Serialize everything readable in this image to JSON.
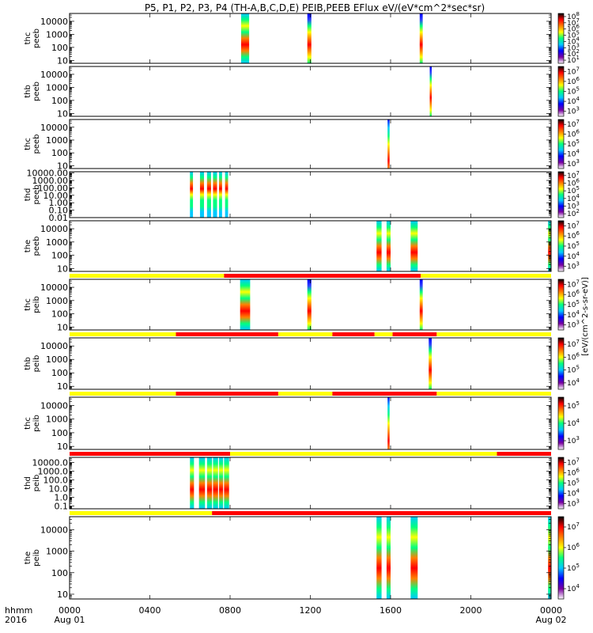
{
  "chart_data": {
    "type": "heatmap",
    "title": "P5, P1, P2, P3, P4 (TH-A,B,C,D,E) PEIB,PEEB EFlux eV/(eV*cm^2*sec*sr)",
    "colorbar_label": "[eV/(cm^2-s-sr-eV)]",
    "x_axis": {
      "row_label": "hhmm",
      "year_label": "2016",
      "ticks": [
        "0000",
        "0400",
        "0800",
        "1200",
        "1600",
        "2000",
        "0000"
      ],
      "date_labels": [
        "Aug 01",
        "",
        "",
        "",
        "",
        "",
        "Aug 02"
      ],
      "xlim": [
        "2016-08-01 00:00",
        "2016-08-02 00:00"
      ]
    },
    "colormap": [
      "#ffffff",
      "#7a00a0",
      "#0000ff",
      "#00c8ff",
      "#00ff80",
      "#ffff00",
      "#ff8000",
      "#ff0000",
      "#000000"
    ],
    "status_bar_colors": {
      "yellow": "#ffff00",
      "red": "#ff0000"
    },
    "panels": [
      {
        "label": [
          "thc",
          "peeb"
        ],
        "y_scale": "log",
        "ylim": [
          6,
          40000
        ],
        "yticks": [
          "10",
          "100",
          "1000",
          "10000"
        ],
        "colorbar_ticks": [
          "10^1",
          "10^2",
          "10^3",
          "10^4",
          "10^5",
          "10^6",
          "10^7",
          "10^8"
        ],
        "blocks": [
          {
            "t0": 8.55,
            "t1": 8.95,
            "style": "mixed"
          },
          {
            "t0": 11.85,
            "t1": 12.05,
            "style": "band"
          },
          {
            "t0": 17.45,
            "t1": 17.6,
            "style": "band"
          }
        ]
      },
      {
        "label": [
          "thb",
          "peeb"
        ],
        "y_scale": "log",
        "ylim": [
          6,
          40000
        ],
        "yticks": [
          "10",
          "100",
          "1000",
          "10000"
        ],
        "colorbar_ticks": [
          "10^3",
          "10^4",
          "10^5",
          "10^6",
          "10^7"
        ],
        "blocks": [
          {
            "t0": 17.95,
            "t1": 18.05,
            "style": "band"
          }
        ]
      },
      {
        "label": [
          "thc",
          "peeb"
        ],
        "y_scale": "log",
        "ylim": [
          6,
          40000
        ],
        "yticks": [
          "10",
          "100",
          "1000",
          "10000"
        ],
        "colorbar_ticks": [
          "10^3",
          "10^4",
          "10^5",
          "10^6",
          "10^7"
        ],
        "blocks": [
          {
            "t0": 15.85,
            "t1": 15.95,
            "style": "thin"
          }
        ]
      },
      {
        "label": [
          "thd",
          "peeb"
        ],
        "y_scale": "log",
        "ylim": [
          0.01,
          15000
        ],
        "yticks": [
          "0.01",
          "0.10",
          "1.00",
          "10.00",
          "100.00",
          "1000.00",
          "10000.00"
        ],
        "colorbar_ticks": [
          "10^2",
          "10^3",
          "10^4",
          "10^5",
          "10^6",
          "10^7"
        ],
        "blocks": [
          {
            "t0": 6.0,
            "t1": 6.15,
            "style": "stripe"
          },
          {
            "t0": 6.5,
            "t1": 6.7,
            "style": "stripe"
          },
          {
            "t0": 6.85,
            "t1": 7.05,
            "style": "stripe"
          },
          {
            "t0": 7.15,
            "t1": 7.35,
            "style": "stripe"
          },
          {
            "t0": 7.45,
            "t1": 7.6,
            "style": "stripe"
          },
          {
            "t0": 7.75,
            "t1": 7.9,
            "style": "stripe"
          }
        ]
      },
      {
        "label": [
          "the",
          "peeb"
        ],
        "y_scale": "log",
        "ylim": [
          6,
          40000
        ],
        "yticks": [
          "10",
          "100",
          "1000",
          "10000"
        ],
        "colorbar_ticks": [
          "10^3",
          "10^4",
          "10^5",
          "10^6",
          "10^7"
        ],
        "blocks": [
          {
            "t0": 15.3,
            "t1": 15.55,
            "style": "mixed"
          },
          {
            "t0": 15.8,
            "t1": 16.0,
            "style": "mixed"
          },
          {
            "t0": 17.0,
            "t1": 17.35,
            "style": "mixed"
          },
          {
            "t0": 23.85,
            "t1": 24.0,
            "style": "mixed"
          }
        ],
        "status_bar": [
          {
            "t0": 0,
            "t1": 7.7,
            "color": "yellow"
          },
          {
            "t0": 7.7,
            "t1": 17.5,
            "color": "red"
          },
          {
            "t0": 17.5,
            "t1": 24,
            "color": "yellow"
          }
        ]
      },
      {
        "label": [
          "thc",
          "peib"
        ],
        "y_scale": "log",
        "ylim": [
          6,
          40000
        ],
        "yticks": [
          "10",
          "100",
          "1000",
          "10000"
        ],
        "colorbar_ticks": [
          "10^3",
          "10^4",
          "10^5",
          "10^6",
          "10^7"
        ],
        "blocks": [
          {
            "t0": 8.5,
            "t1": 9.0,
            "style": "mixed"
          },
          {
            "t0": 11.85,
            "t1": 12.05,
            "style": "band"
          },
          {
            "t0": 17.45,
            "t1": 17.6,
            "style": "band"
          }
        ],
        "status_bar": [
          {
            "t0": 0,
            "t1": 5.3,
            "color": "yellow"
          },
          {
            "t0": 5.3,
            "t1": 10.4,
            "color": "red"
          },
          {
            "t0": 10.4,
            "t1": 13.1,
            "color": "yellow"
          },
          {
            "t0": 13.1,
            "t1": 15.2,
            "color": "red"
          },
          {
            "t0": 15.2,
            "t1": 16.1,
            "color": "yellow"
          },
          {
            "t0": 16.1,
            "t1": 18.3,
            "color": "red"
          },
          {
            "t0": 18.3,
            "t1": 24,
            "color": "yellow"
          }
        ]
      },
      {
        "label": [
          "thb",
          "peib"
        ],
        "y_scale": "log",
        "ylim": [
          6,
          40000
        ],
        "yticks": [
          "10",
          "100",
          "1000",
          "10000"
        ],
        "colorbar_ticks": [
          "10^4",
          "10^5",
          "10^6",
          "10^7"
        ],
        "blocks": [
          {
            "t0": 17.9,
            "t1": 18.05,
            "style": "band"
          }
        ],
        "status_bar": [
          {
            "t0": 0,
            "t1": 5.3,
            "color": "yellow"
          },
          {
            "t0": 5.3,
            "t1": 10.4,
            "color": "red"
          },
          {
            "t0": 10.4,
            "t1": 13.1,
            "color": "yellow"
          },
          {
            "t0": 13.1,
            "t1": 18.3,
            "color": "red"
          },
          {
            "t0": 18.3,
            "t1": 24,
            "color": "yellow"
          }
        ]
      },
      {
        "label": [
          "thc",
          "peib"
        ],
        "y_scale": "log",
        "ylim": [
          6,
          40000
        ],
        "yticks": [
          "10",
          "100",
          "1000",
          "10000"
        ],
        "colorbar_ticks": [
          "10^3",
          "10^4",
          "10^5"
        ],
        "blocks": [
          {
            "t0": 15.85,
            "t1": 15.95,
            "style": "thin"
          }
        ],
        "status_bar": [
          {
            "t0": 0,
            "t1": 8.0,
            "color": "red"
          },
          {
            "t0": 8.0,
            "t1": 21.3,
            "color": "yellow"
          },
          {
            "t0": 21.3,
            "t1": 24,
            "color": "red"
          }
        ]
      },
      {
        "label": [
          "thd",
          "peib"
        ],
        "y_scale": "log",
        "ylim": [
          0.05,
          40000
        ],
        "yticks": [
          "0.1",
          "1.0",
          "10.0",
          "100.0",
          "1000.0",
          "10000.0"
        ],
        "colorbar_ticks": [
          "10^3",
          "10^4",
          "10^5",
          "10^6",
          "10^7"
        ],
        "blocks": [
          {
            "t0": 6.0,
            "t1": 6.2,
            "style": "mixed"
          },
          {
            "t0": 6.45,
            "t1": 6.75,
            "style": "mixed"
          },
          {
            "t0": 6.85,
            "t1": 7.1,
            "style": "mixed"
          },
          {
            "t0": 7.15,
            "t1": 7.4,
            "style": "mixed"
          },
          {
            "t0": 7.45,
            "t1": 7.65,
            "style": "mixed"
          },
          {
            "t0": 7.7,
            "t1": 7.95,
            "style": "mixed"
          }
        ],
        "status_bar": [
          {
            "t0": 0,
            "t1": 7.1,
            "color": "yellow"
          },
          {
            "t0": 7.1,
            "t1": 24,
            "color": "red"
          }
        ]
      },
      {
        "label": [
          "the",
          "peib"
        ],
        "y_scale": "log",
        "ylim": [
          6,
          40000
        ],
        "yticks": [
          "10",
          "100",
          "1000",
          "10000"
        ],
        "colorbar_ticks": [
          "10^4",
          "10^5",
          "10^6",
          "10^7"
        ],
        "blocks": [
          {
            "t0": 15.3,
            "t1": 15.55,
            "style": "mixed"
          },
          {
            "t0": 15.8,
            "t1": 16.0,
            "style": "mixed"
          },
          {
            "t0": 17.0,
            "t1": 17.35,
            "style": "mixed"
          },
          {
            "t0": 23.85,
            "t1": 24.0,
            "style": "mixed"
          }
        ]
      }
    ]
  }
}
